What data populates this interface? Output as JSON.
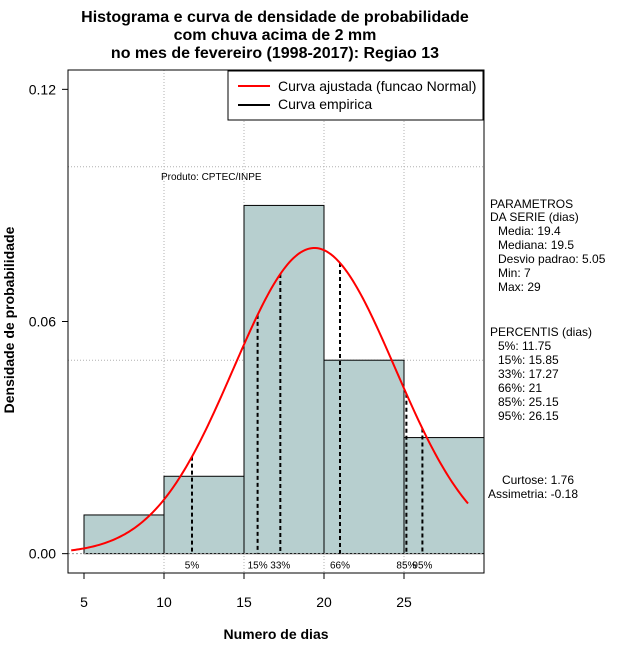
{
  "chart_data": {
    "type": "histogram",
    "title_lines": [
      "Histograma e curva de densidade de probabilidade",
      "com chuva acima de 2 mm",
      "no mes de fevereiro (1998-2017): Regiao 13"
    ],
    "xlabel": "Numero de dias",
    "ylabel": "Densidade de probabilidade",
    "xlim": [
      4,
      30
    ],
    "ylim": [
      -0.005,
      0.125
    ],
    "x_ticks": [
      5,
      10,
      15,
      20,
      25
    ],
    "x_tick_labels": [
      "5",
      "10",
      "15",
      "20",
      "25"
    ],
    "y_ticks": [
      0.0,
      0.06,
      0.12
    ],
    "y_tick_labels": [
      "0.00",
      "0.06",
      "0.12"
    ],
    "grid_x": [
      10,
      15,
      20,
      25
    ],
    "grid_y": [
      0.1,
      0.05
    ],
    "bins": [
      {
        "start": 5,
        "end": 10,
        "density": 0.01
      },
      {
        "start": 10,
        "end": 15,
        "density": 0.02
      },
      {
        "start": 15,
        "end": 20,
        "density": 0.09
      },
      {
        "start": 20,
        "end": 25,
        "density": 0.05
      },
      {
        "start": 25,
        "end": 30,
        "density": 0.03
      }
    ],
    "bar_color": "#b7cfcf",
    "normal_curve": {
      "mean": 19.4,
      "sd": 5.05,
      "x_range": [
        4.2,
        29
      ],
      "color": "#ff0000"
    },
    "legend": {
      "position": "top-right",
      "entries": [
        {
          "label": "Curva ajustada (funcao Normal)",
          "color": "#ff0000"
        },
        {
          "label": "Curva empirica",
          "color": "#000000"
        }
      ]
    },
    "product_note": "Produto: CPTEC/INPE",
    "percentile_markers": [
      {
        "x": 11.75,
        "label": "5%"
      },
      {
        "x": 15.85,
        "label": "15%"
      },
      {
        "x": 17.27,
        "label": "33%"
      },
      {
        "x": 21,
        "label": "66%"
      },
      {
        "x": 25.15,
        "label": "85%"
      },
      {
        "x": 26.15,
        "label": "95%"
      }
    ],
    "parametros": {
      "heading": [
        "PARAMETROS",
        "DA SERIE (dias)"
      ],
      "lines": [
        "Media: 19.4",
        "Mediana: 19.5",
        "Desvio padrao: 5.05",
        "Min: 7",
        "Max: 29"
      ]
    },
    "percentis": {
      "heading": "PERCENTIS (dias)",
      "lines": [
        "5%: 11.75",
        "15%: 15.85",
        "33%: 17.27",
        "66%: 21",
        "85%: 25.15",
        "95%: 26.15"
      ]
    },
    "shape_stats": [
      "Curtose: 1.76",
      "Assimetria: -0.18"
    ]
  }
}
